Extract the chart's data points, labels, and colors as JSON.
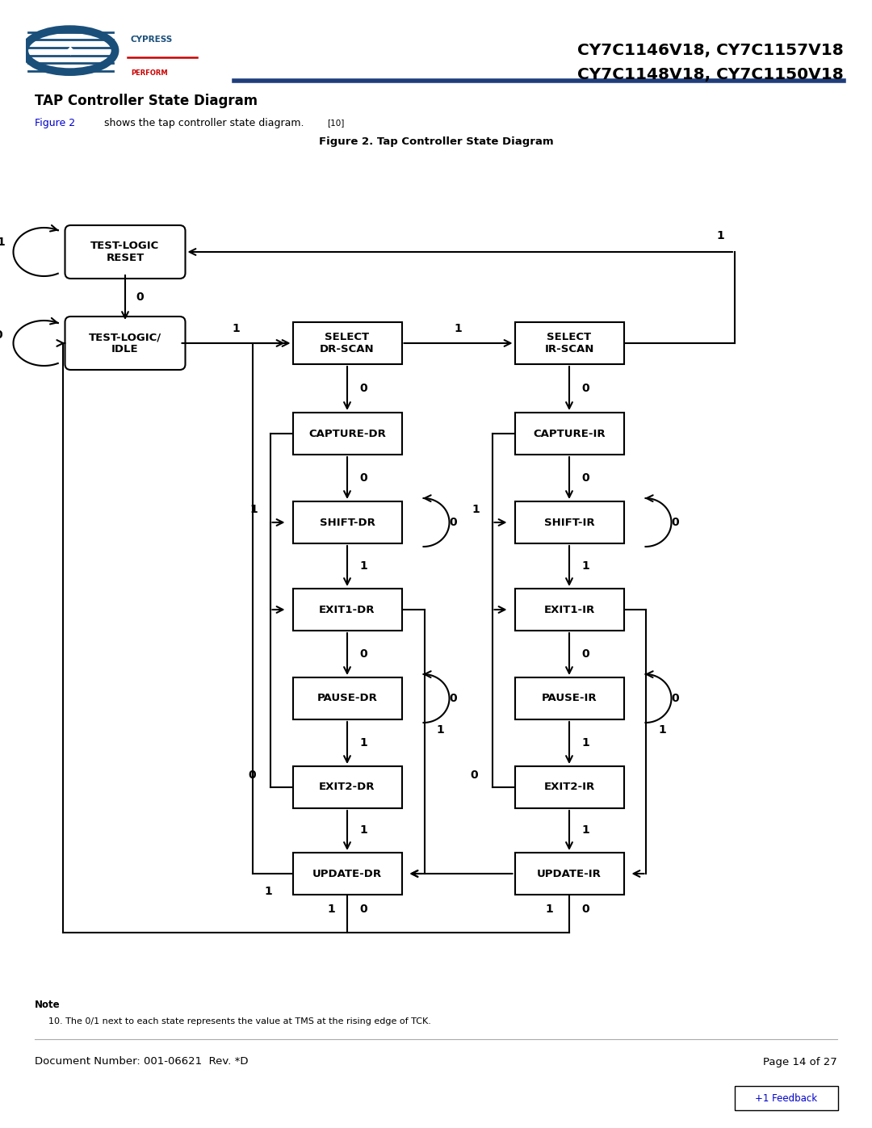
{
  "title_line1": "CY7C1146V18, CY7C1157V18",
  "title_line2": "CY7C1148V18, CY7C1150V18",
  "section_title": "TAP Controller State Diagram",
  "figure_caption": "Figure 2. Tap Controller State Diagram",
  "note_title": "Note",
  "note_text": "10. The 0/1 next to each state represents the value at TMS at the rising edge of TCK.",
  "doc_number": "Document Number: 001-06621  Rev. *D",
  "page_info": "Page 14 of 27",
  "feedback_text": "+1 Feedback",
  "header_line_color": "#1f3d7a",
  "fig2_link_color": "#0000cc"
}
